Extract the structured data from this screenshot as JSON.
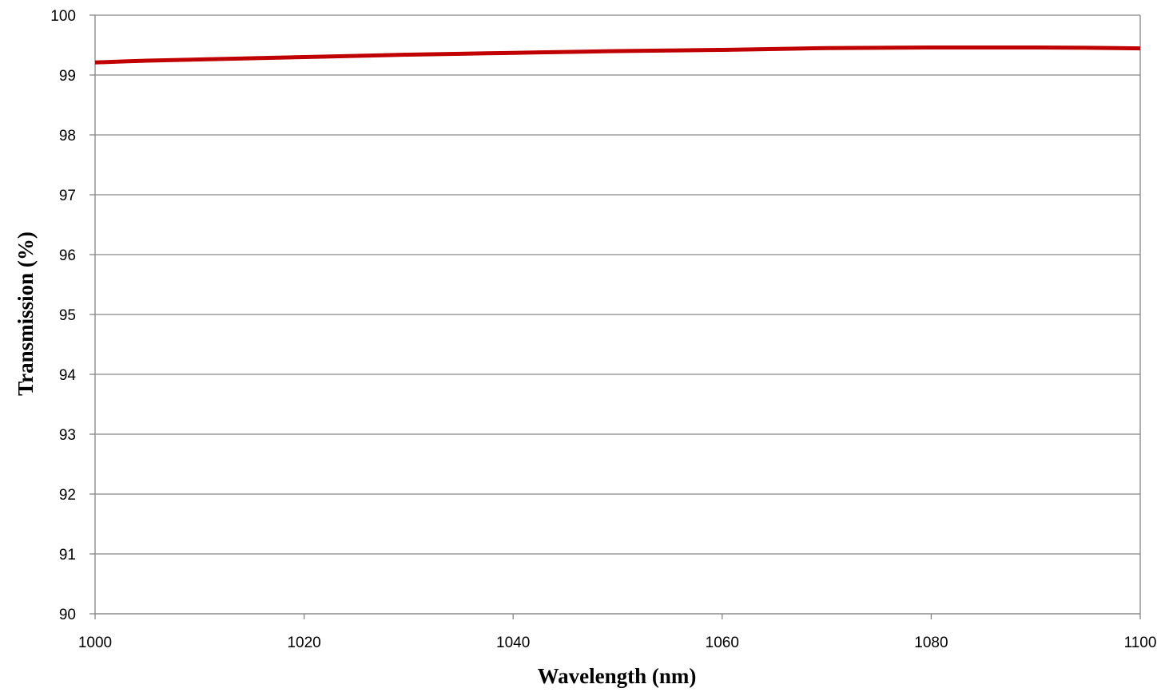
{
  "chart_data": {
    "type": "line",
    "xlabel": "Wavelength (nm)",
    "ylabel": "Transmission (%)",
    "xlim": [
      1000,
      1100
    ],
    "ylim": [
      90,
      100
    ],
    "x_ticks": [
      "1000",
      "1020",
      "1040",
      "1060",
      "1080",
      "1100"
    ],
    "y_ticks": [
      "90",
      "91",
      "92",
      "93",
      "94",
      "95",
      "96",
      "97",
      "98",
      "99",
      "100"
    ],
    "grid": "horizontal",
    "legend": "none",
    "series": [
      {
        "color": "#c00000",
        "x": [
          1000,
          1005,
          1010,
          1015,
          1020,
          1025,
          1030,
          1035,
          1040,
          1045,
          1050,
          1055,
          1060,
          1065,
          1070,
          1075,
          1080,
          1085,
          1090,
          1095,
          1100
        ],
        "y": [
          99.21,
          99.24,
          99.26,
          99.28,
          99.3,
          99.32,
          99.34,
          99.355,
          99.37,
          99.385,
          99.4,
          99.41,
          99.42,
          99.435,
          99.45,
          99.455,
          99.46,
          99.46,
          99.46,
          99.455,
          99.445
        ]
      }
    ]
  }
}
